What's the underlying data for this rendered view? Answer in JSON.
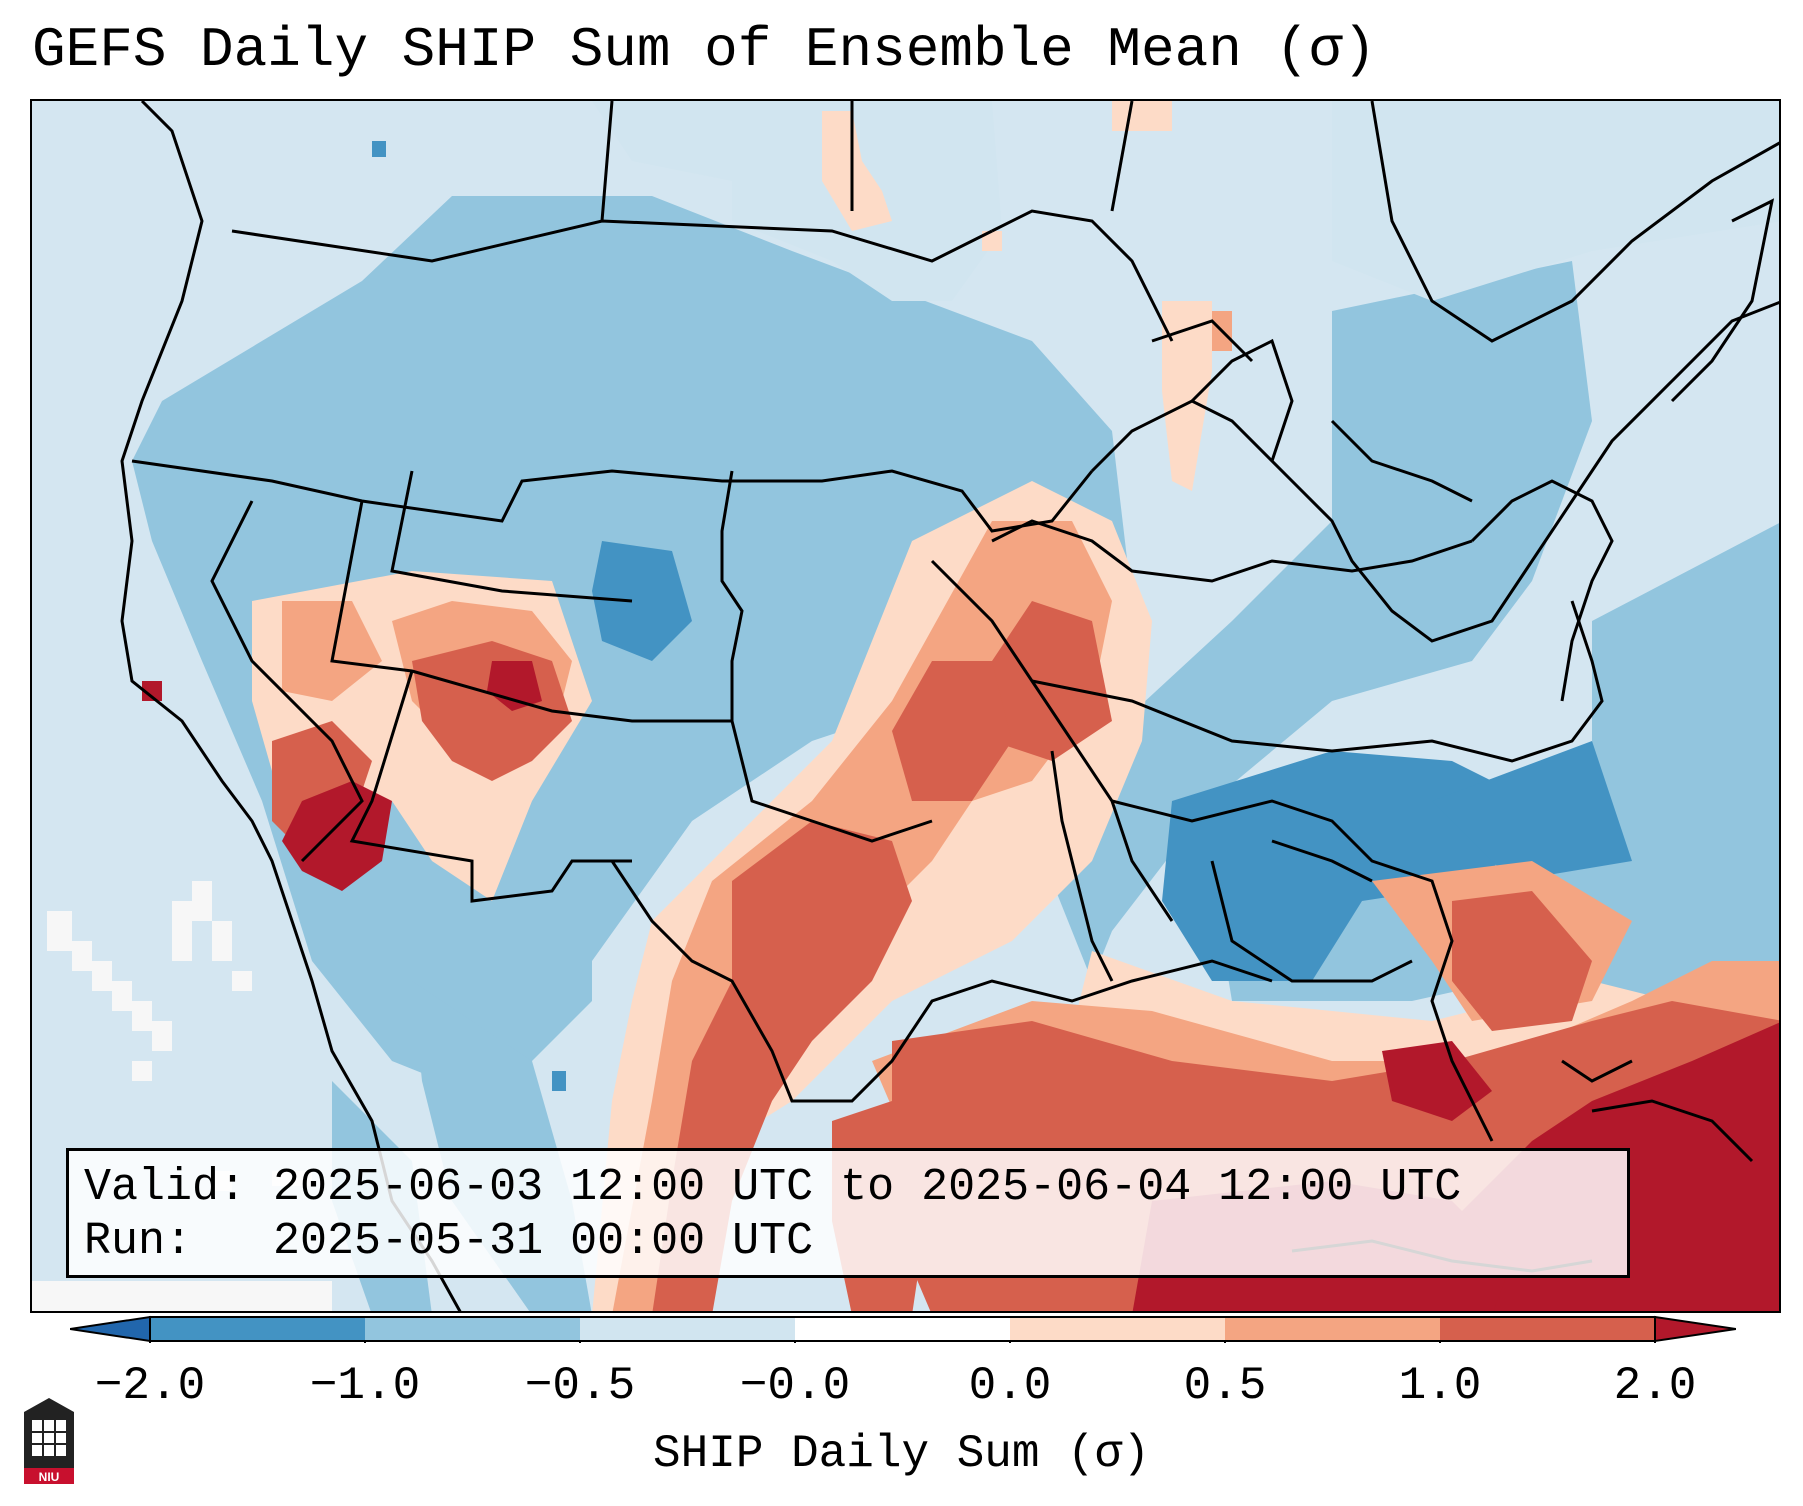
{
  "title": "GEFS Daily SHIP Sum of Ensemble Mean (σ)",
  "info": {
    "valid_label": "Valid:",
    "valid_value": "2025-06-03 12:00 UTC to 2025-06-04 12:00 UTC",
    "run_label": "Run:",
    "run_value": "2025-05-31 00:00 UTC"
  },
  "colorbar": {
    "label": "SHIP Daily Sum (σ)",
    "ticks": [
      "−2.0",
      "−1.0",
      "−0.5",
      "−0.0",
      "0.0",
      "0.5",
      "1.0",
      "2.0"
    ],
    "colors": [
      "#4393c3",
      "#92c5de",
      "#d1e5f0",
      "#fddbc7",
      "#f4a582",
      "#d6604d",
      "#b2182b"
    ],
    "under_color": "#2166ac",
    "over_color": "#b2182b",
    "land_neutral": "#d4e6f1"
  },
  "logo": {
    "text": "NIU"
  }
}
